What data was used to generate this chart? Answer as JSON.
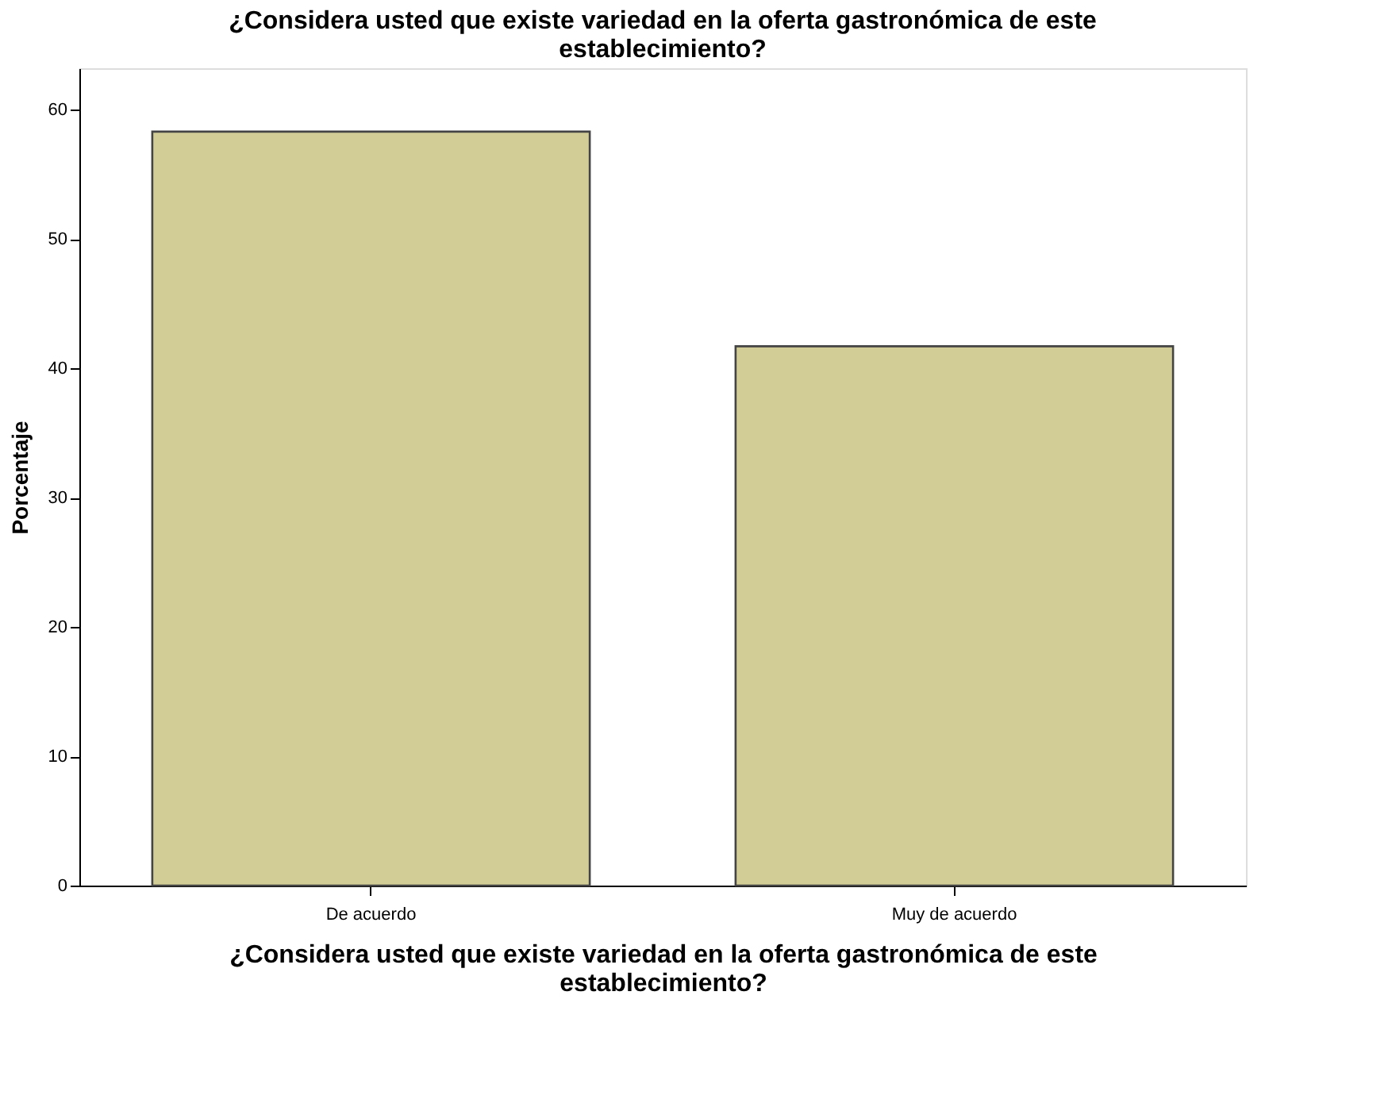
{
  "chart_data": {
    "type": "bar",
    "title": "¿Considera usted que existe variedad en la oferta gastronómica de este establecimiento?",
    "xlabel": "¿Considera usted que existe variedad en la oferta gastronómica de este establecimiento?",
    "ylabel": "Porcentaje",
    "categories": [
      "De acuerdo",
      "Muy de acuerdo"
    ],
    "values": [
      58.3,
      41.7
    ],
    "color": "#d2cc96",
    "ylim": [
      0,
      63.2
    ],
    "yticks": [
      0,
      10,
      20,
      30,
      40,
      50,
      60
    ],
    "grid": false
  }
}
